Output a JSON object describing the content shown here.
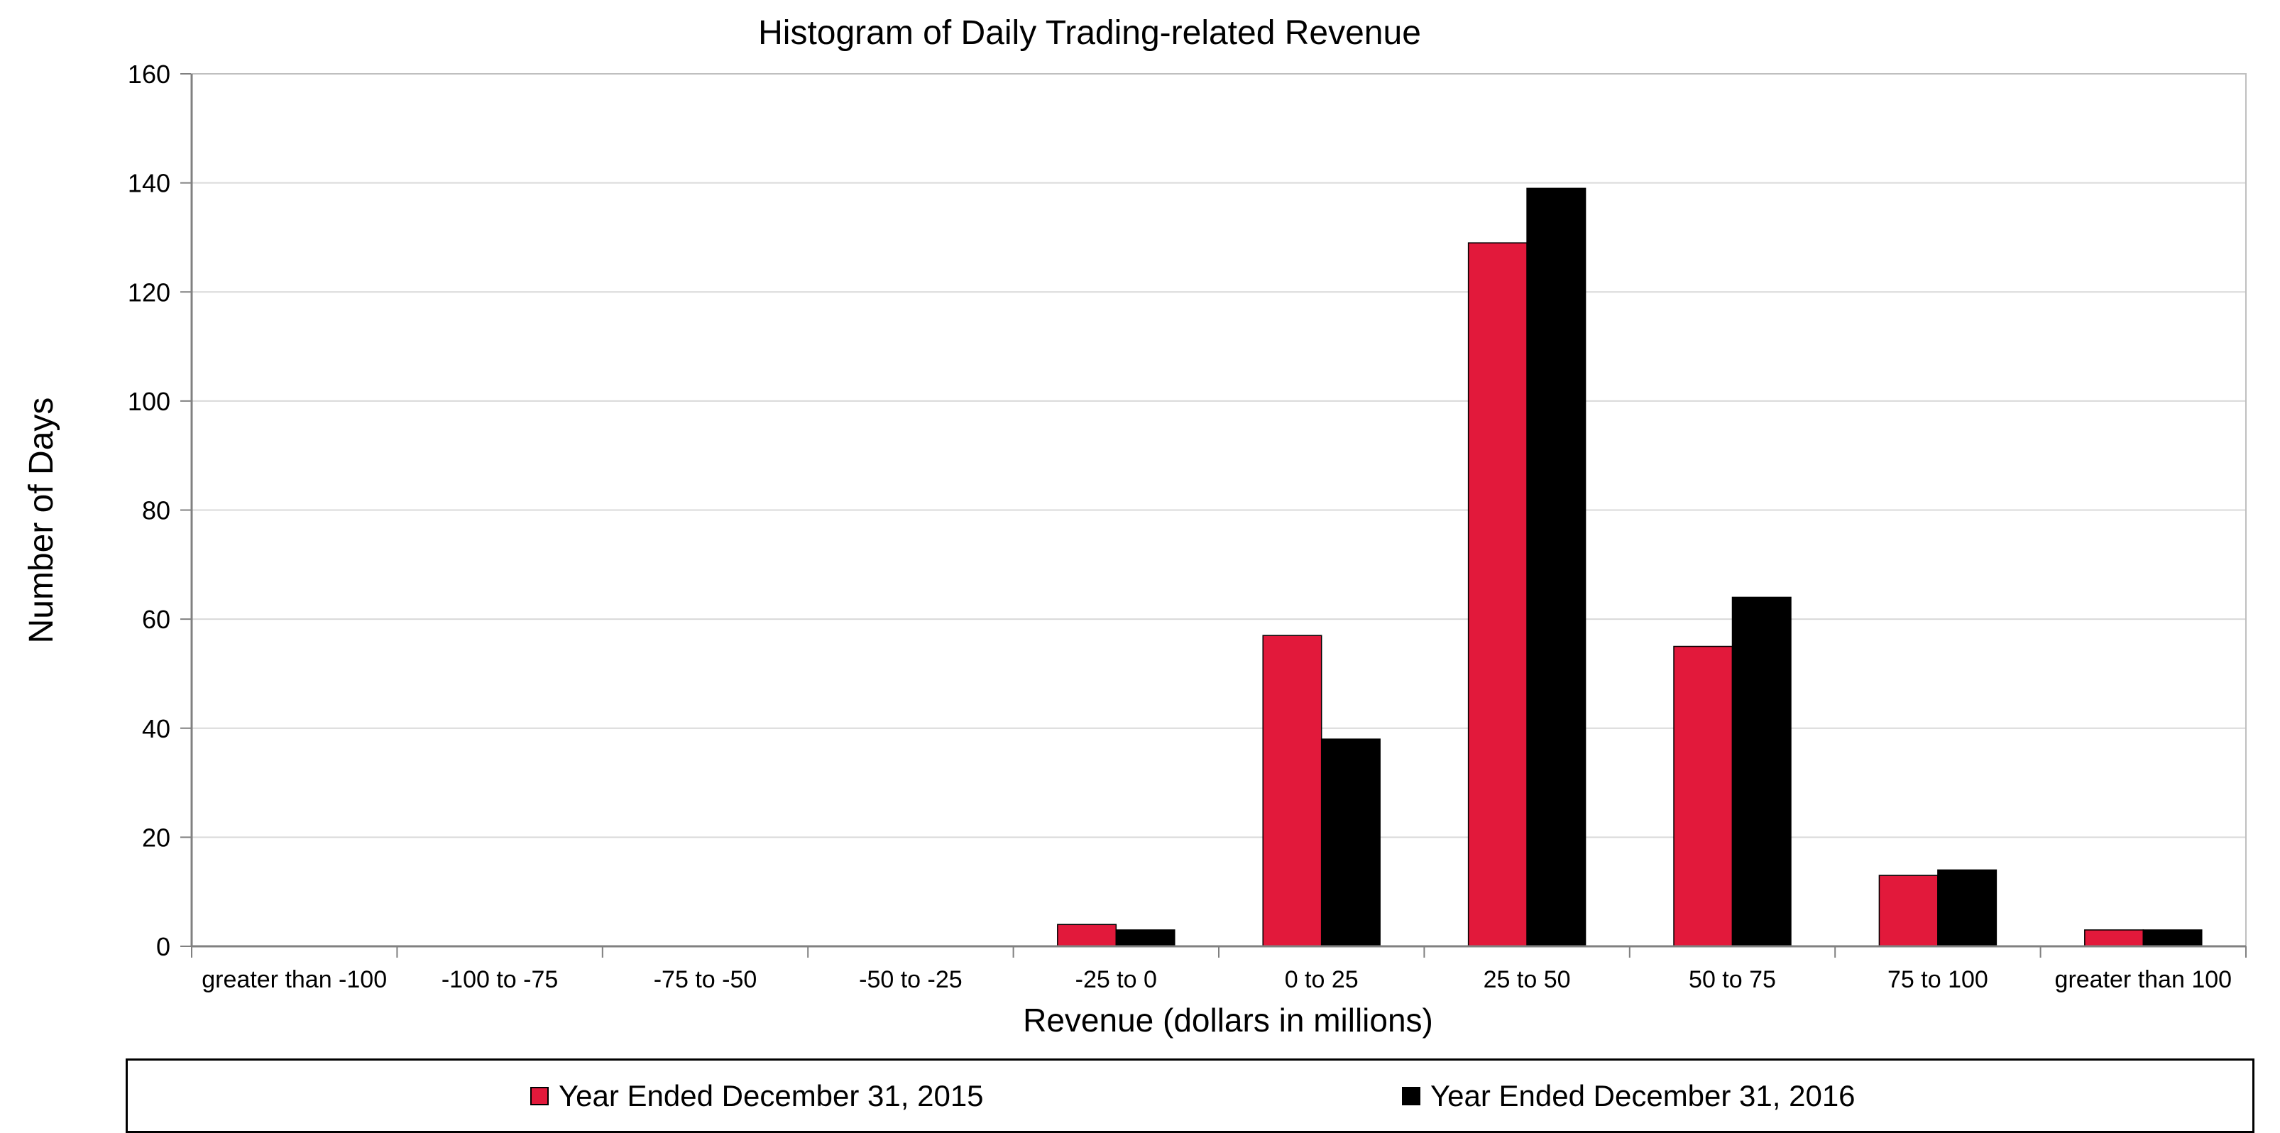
{
  "chart_data": {
    "type": "bar",
    "title": "Histogram of Daily Trading-related Revenue",
    "xlabel": "Revenue (dollars in millions)",
    "ylabel": "Number of Days",
    "ylim": [
      0,
      160
    ],
    "yticks": [
      0,
      20,
      40,
      60,
      80,
      100,
      120,
      140,
      160
    ],
    "grid": true,
    "legend_position": "bottom",
    "categories": [
      "greater than -100",
      "-100 to -75",
      "-75 to -50",
      "-50 to -25",
      "-25 to 0",
      "0 to 25",
      "25 to 50",
      "50 to 75",
      "75 to 100",
      "greater than 100"
    ],
    "series": [
      {
        "name": "Year Ended December 31, 2015",
        "color": "#e2193b",
        "values": [
          0,
          0,
          0,
          0,
          4,
          57,
          129,
          55,
          13,
          3
        ]
      },
      {
        "name": "Year Ended December 31, 2016",
        "color": "#000000",
        "values": [
          0,
          0,
          0,
          0,
          3,
          38,
          139,
          64,
          14,
          3
        ]
      }
    ]
  }
}
